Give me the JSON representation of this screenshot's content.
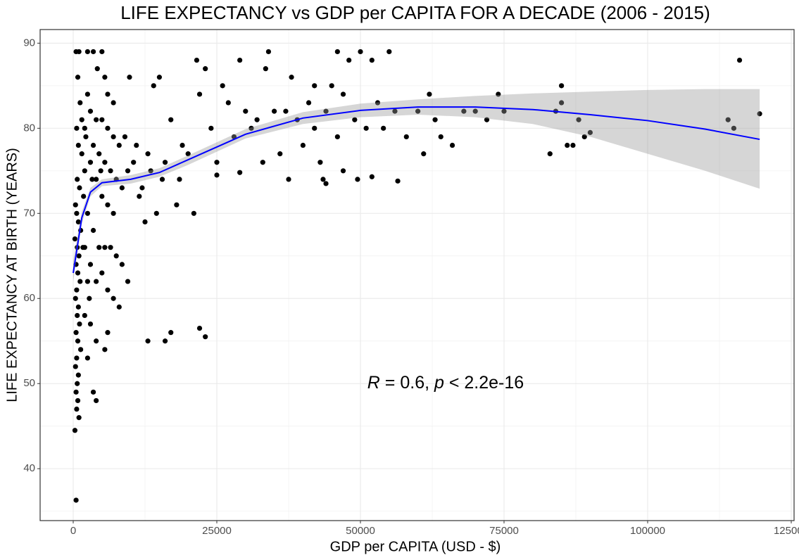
{
  "chart_data": {
    "type": "scatter",
    "title": "LIFE EXPECTANCY vs GDP per CAPITA FOR A DECADE (2006 - 2015)",
    "xlabel": "GDP per CAPITA (USD - $)",
    "ylabel": "LIFE EXPECTANCY AT BIRTH (YEARS)",
    "color": "#000000",
    "x": [
      500,
      1000,
      2500,
      3500,
      5000,
      800,
      1200,
      600,
      900,
      1500,
      2000,
      700,
      1100,
      1800,
      400,
      600,
      900,
      1300,
      300,
      700,
      1000,
      500,
      800,
      1200,
      600,
      400,
      900,
      700,
      1100,
      500,
      800,
      1300,
      600,
      400,
      900,
      700,
      500,
      800,
      600,
      1000,
      300,
      500,
      2500,
      3000,
      4000,
      5000,
      6000,
      7000,
      8000,
      9000,
      2000,
      3500,
      4500,
      5500,
      6500,
      7500,
      8500,
      9500,
      3000,
      4000,
      5000,
      6000,
      7000,
      2500,
      3500,
      4500,
      5500,
      6500,
      7500,
      8500,
      9500,
      3000,
      4000,
      5000,
      6000,
      7000,
      8000,
      2000,
      3000,
      4000,
      5500,
      6000,
      2500,
      3500,
      4000,
      2000,
      2500,
      5500,
      6000,
      7000,
      9800,
      4200,
      1500,
      2200,
      3300,
      4800,
      1700,
      2800,
      10500,
      11500,
      12000,
      13000,
      13500,
      14000,
      15000,
      16000,
      17000,
      18000,
      19000,
      20000,
      21000,
      21500,
      22000,
      23000,
      12500,
      13000,
      16000,
      17000,
      22000,
      23000,
      11000,
      14500,
      15500,
      18500,
      24000,
      25000,
      26000,
      27000,
      28000,
      29000,
      30000,
      31000,
      32000,
      33000,
      33500,
      34000,
      35000,
      36000,
      37000,
      37500,
      38000,
      39000,
      40000,
      29000,
      25000,
      41000,
      42000,
      43000,
      43500,
      44000,
      45000,
      46000,
      47000,
      48000,
      49000,
      49500,
      50000,
      51000,
      52000,
      53000,
      54000,
      55000,
      56000,
      56500,
      58000,
      60000,
      61000,
      62000,
      63000,
      64000,
      66000,
      68000,
      70000,
      72000,
      74000,
      75000,
      83000,
      85000,
      85000,
      86000,
      87000,
      88000,
      89000,
      90000,
      84000,
      114000,
      115000,
      116000,
      119500,
      42000,
      46000,
      52000,
      47000,
      44000
    ],
    "y": [
      89,
      89,
      89,
      89,
      89,
      86,
      83,
      80,
      78,
      77,
      75,
      74,
      73,
      72,
      71,
      70,
      69,
      68,
      67,
      66,
      65,
      64,
      63,
      62,
      61,
      60,
      59,
      58,
      57,
      56,
      55,
      54,
      53,
      52,
      51,
      50,
      49,
      48,
      47,
      46,
      44.5,
      36.3,
      84,
      82,
      81,
      81,
      80,
      79,
      78,
      79,
      80,
      78,
      77,
      76,
      75,
      74,
      73,
      75,
      76,
      74,
      72,
      71,
      70,
      70,
      68,
      66,
      66,
      66,
      65,
      64,
      62,
      64,
      62,
      63,
      61,
      60,
      59,
      58,
      57,
      55,
      54,
      56,
      53,
      49,
      48,
      66,
      62,
      86,
      84,
      83,
      86,
      87,
      81,
      79,
      74,
      75,
      66,
      60,
      76,
      72,
      73,
      77,
      75,
      85,
      86,
      76,
      81,
      71,
      78,
      77,
      70,
      88,
      84,
      87,
      69,
      55,
      55,
      56,
      56.5,
      55.5,
      78,
      70,
      74,
      74,
      80,
      76,
      85,
      83,
      79,
      88,
      82,
      80,
      81,
      76,
      87,
      89,
      82,
      77,
      82,
      74,
      86,
      81,
      78,
      74.8,
      74.5,
      83,
      80,
      76,
      74,
      82,
      85,
      89,
      84,
      88,
      81,
      74,
      89,
      80,
      88,
      83,
      80,
      89,
      82,
      73.8,
      79,
      82,
      77,
      84,
      81,
      79,
      78,
      82,
      82,
      81,
      84,
      82,
      77,
      83,
      85,
      78,
      78,
      81,
      79,
      79.5,
      82,
      81,
      80,
      88,
      81.7,
      85,
      79,
      74.3,
      75,
      73.5
    ],
    "xlim": [
      -5760,
      125490
    ],
    "ylim": [
      33.9,
      91.6
    ],
    "xticks": [
      0,
      25000,
      50000,
      75000,
      100000,
      125000
    ],
    "yticks": [
      40,
      50,
      60,
      70,
      80,
      90
    ],
    "grid": true,
    "smooth": {
      "color": "#0000ff",
      "x": [
        0,
        1500,
        3000,
        5000,
        10000,
        15000,
        20000,
        30000,
        40000,
        50000,
        60000,
        70000,
        80000,
        90000,
        100000,
        110000,
        119500
      ],
      "y": [
        63,
        69.5,
        72.5,
        73.6,
        74,
        74.8,
        76.3,
        79.3,
        81.2,
        82.1,
        82.5,
        82.5,
        82.2,
        81.6,
        80.9,
        79.9,
        78.7
      ],
      "lower": [
        62,
        68.8,
        72,
        73.2,
        73.5,
        74.3,
        75.7,
        78.8,
        80.5,
        81.3,
        81.6,
        81.3,
        80.5,
        79,
        77,
        75,
        72.9
      ],
      "upper": [
        64.5,
        70.2,
        73,
        74,
        74.5,
        75.3,
        76.8,
        79.9,
        81.9,
        82.9,
        83.4,
        83.8,
        84.1,
        84.3,
        84.5,
        84.6,
        84.6
      ]
    },
    "annotation": [
      "R",
      " = 0.6, ",
      "p",
      " < 2.2e-16"
    ]
  }
}
